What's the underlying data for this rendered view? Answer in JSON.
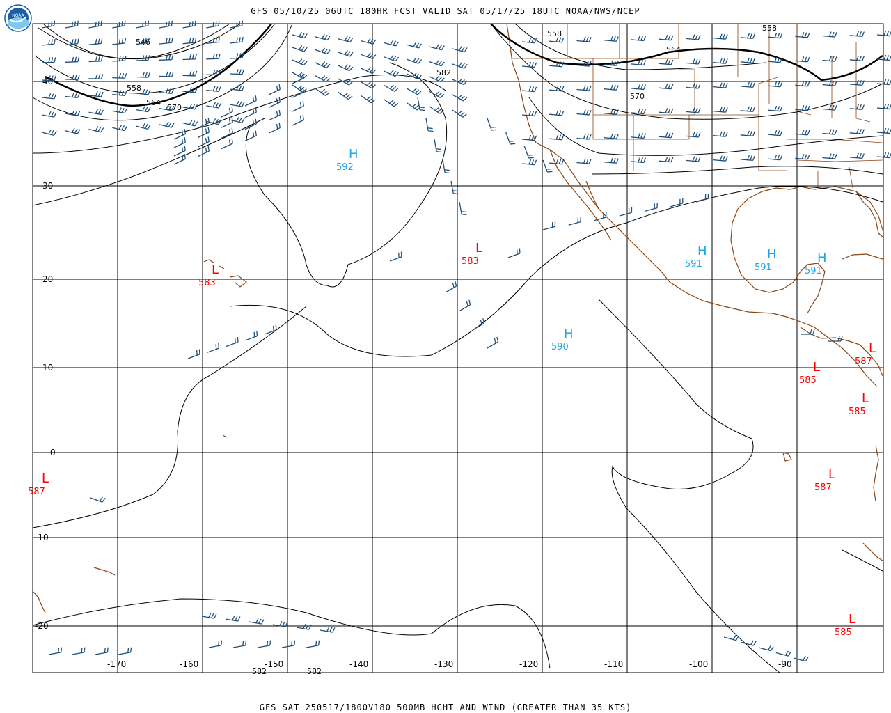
{
  "header": {
    "title": "GFS 05/10/25 06UTC 180HR FCST VALID SAT 05/17/25 18UTC NOAA/NWS/NCEP",
    "logo_text": "NOAA"
  },
  "footer": {
    "title": "GFS SAT 250517/1800V180 500MB HGHT AND WIND (GREATER THAN 35 KTS)"
  },
  "colors": {
    "grid": "#000000",
    "coast": "#8B4513",
    "barb": "#1F4E79",
    "high": "#1EA7E1",
    "low": "#FF0000",
    "contour": "#000000"
  },
  "map": {
    "lon_labels": [
      "-170",
      "-160",
      "-150",
      "-140",
      "-130",
      "-120",
      "-110",
      "-100",
      "-90"
    ],
    "lat_labels": [
      "40",
      "30",
      "20",
      "10",
      "0",
      "-10",
      "-20"
    ],
    "contour_labels": [
      "546",
      "558",
      "564",
      "570",
      "582",
      "558",
      "564",
      "570",
      "558",
      "582",
      "582"
    ],
    "highs": [
      {
        "letter": "H",
        "value": "592"
      },
      {
        "letter": "H",
        "value": "590"
      },
      {
        "letter": "H",
        "value": "591"
      },
      {
        "letter": "H",
        "value": "591"
      },
      {
        "letter": "H",
        "value": "591"
      }
    ],
    "lows": [
      {
        "letter": "L",
        "value": "583"
      },
      {
        "letter": "L",
        "value": "583"
      },
      {
        "letter": "L",
        "value": "587"
      },
      {
        "letter": "L",
        "value": "585"
      },
      {
        "letter": "L",
        "value": "587"
      },
      {
        "letter": "L",
        "value": "585"
      },
      {
        "letter": "L",
        "value": "587"
      },
      {
        "letter": "L",
        "value": "585"
      }
    ]
  }
}
